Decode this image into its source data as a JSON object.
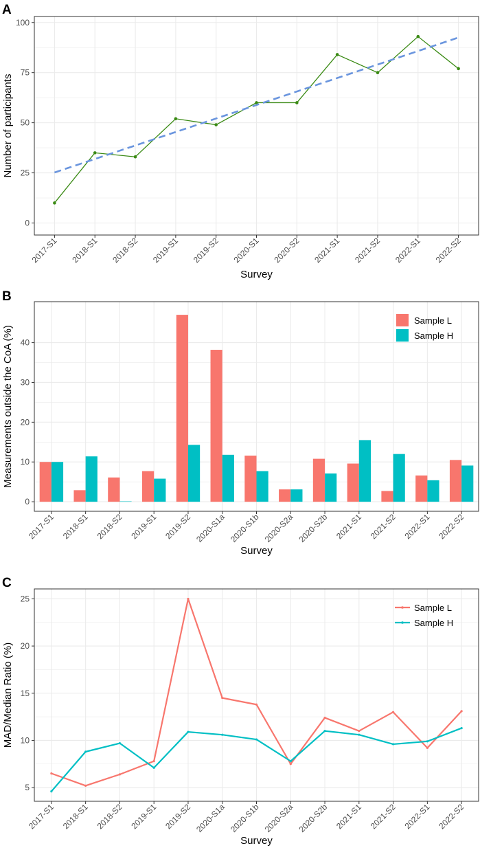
{
  "colors": {
    "panel_a_line": "#3a8a14",
    "panel_a_trend": "#6a95de",
    "sample_l": "#f8766d",
    "sample_h": "#00bfc4",
    "grid": "#ebebeb",
    "axis_text": "#4d4d4d",
    "text": "#000000",
    "frame": "#333333"
  },
  "chart_data": [
    {
      "panel_label": "A",
      "type": "line",
      "categories": [
        "2017-S1",
        "2018-S1",
        "2018-S2",
        "2019-S1",
        "2019-S2",
        "2020-S1",
        "2020-S2",
        "2021-S1",
        "2021-S2",
        "2022-S1",
        "2022-S2"
      ],
      "series": [
        {
          "name": "Participants",
          "values": [
            10,
            35,
            33,
            52,
            49,
            60,
            60,
            84,
            75,
            93,
            77
          ]
        }
      ],
      "trend": {
        "start": 25.2,
        "end": 92.5,
        "style": "dashed"
      },
      "xlabel": "Survey",
      "ylabel": "Number of participants",
      "ylim": [
        -6,
        103
      ],
      "yticks": [
        0,
        25,
        50,
        75,
        100
      ],
      "grid": true
    },
    {
      "panel_label": "B",
      "type": "bar",
      "categories": [
        "2017-S1",
        "2018-S1",
        "2018-S2",
        "2019-S1",
        "2019-S2",
        "2020-S1a",
        "2020-S1b",
        "2020-S2a",
        "2020-S2b",
        "2021-S1",
        "2021-S2",
        "2022-S1",
        "2022-S2"
      ],
      "series": [
        {
          "name": "Sample L",
          "values": [
            10.0,
            2.9,
            6.1,
            7.7,
            47.0,
            38.2,
            11.6,
            3.1,
            10.8,
            9.6,
            2.7,
            6.6,
            10.5
          ]
        },
        {
          "name": "Sample H",
          "values": [
            10.0,
            11.4,
            0.1,
            5.8,
            14.3,
            11.8,
            7.7,
            3.1,
            7.1,
            15.5,
            12.0,
            5.4,
            9.1
          ]
        }
      ],
      "xlabel": "Survey",
      "ylabel": "Measurements outside the CoA (%)",
      "ylim": [
        -2.4,
        50.3
      ],
      "yticks": [
        0,
        10,
        20,
        30,
        40
      ],
      "legend": "top-right",
      "grid": true
    },
    {
      "panel_label": "C",
      "type": "line",
      "categories": [
        "2017-S1",
        "2018-S1",
        "2018-S2",
        "2019-S1",
        "2019-S2",
        "2020-S1a",
        "2020-S1b",
        "2020-S2a",
        "2020-S2b",
        "2021-S1",
        "2021-S2",
        "2022-S1",
        "2022-S2"
      ],
      "series": [
        {
          "name": "Sample L",
          "values": [
            6.5,
            5.2,
            6.4,
            7.8,
            25.0,
            14.5,
            13.8,
            7.5,
            12.4,
            11.0,
            13.0,
            9.2,
            13.1
          ]
        },
        {
          "name": "Sample H",
          "values": [
            4.6,
            8.8,
            9.7,
            7.1,
            10.9,
            10.6,
            10.1,
            7.8,
            11.0,
            10.6,
            9.6,
            9.9,
            11.3
          ]
        }
      ],
      "xlabel": "Survey",
      "ylabel": "MAD/Median Ratio (%)",
      "ylim": [
        3.55,
        26.05
      ],
      "yticks": [
        5,
        10,
        15,
        20,
        25
      ],
      "legend": "top-right",
      "grid": true
    }
  ]
}
